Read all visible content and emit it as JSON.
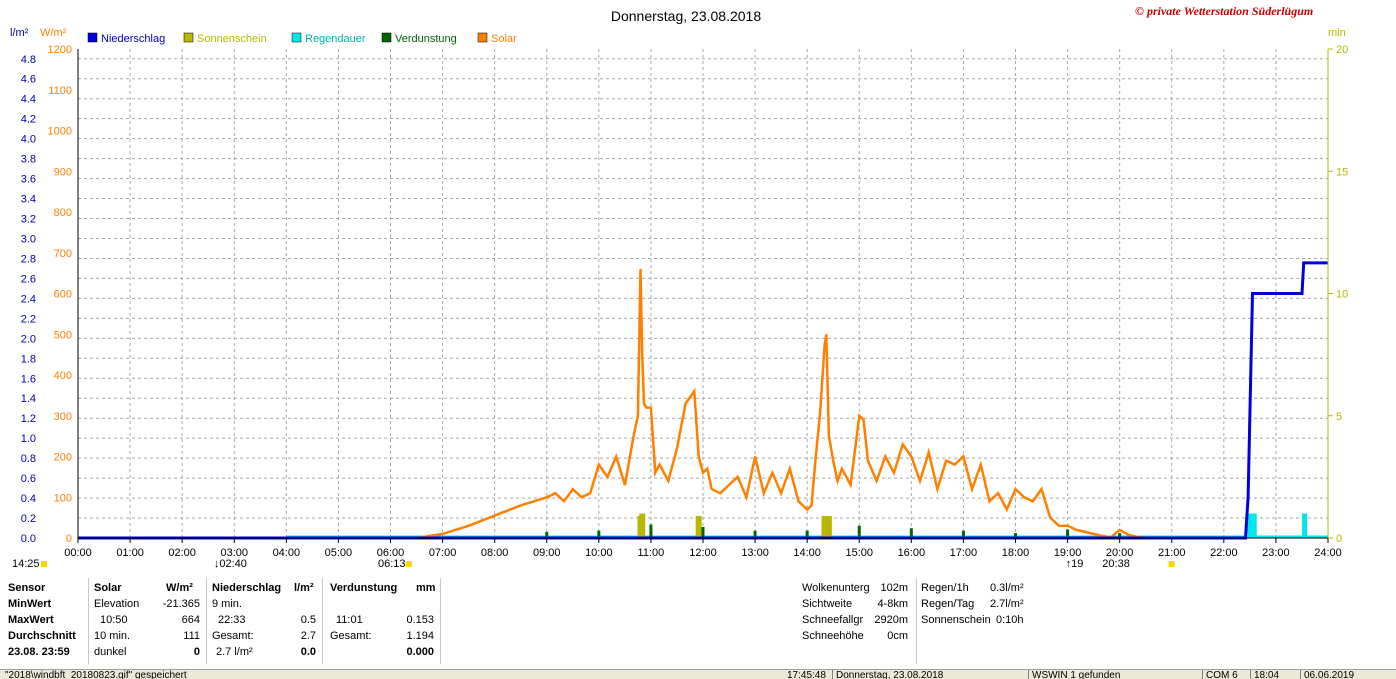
{
  "title": "Donnerstag, 23.08.2018",
  "copyright": "© private Wetterstation Süderlügum",
  "colors": {
    "niederschlag": "#0000dd",
    "sonnenschein": "#b8b800",
    "regendauer": "#00e8e8",
    "verdunstung": "#006600",
    "solar": "#ff8000",
    "grid": "#a8a8a8"
  },
  "legend": [
    {
      "label": "Niederschlag",
      "color": "#0000dd",
      "text_color": "#0000aa"
    },
    {
      "label": "Sonnenschein",
      "color": "#b8b800",
      "text_color": "#b8b800"
    },
    {
      "label": "Regendauer",
      "color": "#00e8e8",
      "text_color": "#00b0b0"
    },
    {
      "label": "Verdunstung",
      "color": "#006600",
      "text_color": "#006600"
    },
    {
      "label": "Solar",
      "color": "#ff8000",
      "text_color": "#ff8000"
    }
  ],
  "axes": {
    "left1_unit": "l/m²",
    "left2_unit": "W/m²",
    "right_unit": "min",
    "left1_ticks": [
      "4.8",
      "4.6",
      "4.4",
      "4.2",
      "4.0",
      "3.8",
      "3.6",
      "3.4",
      "3.2",
      "3.0",
      "2.8",
      "2.6",
      "2.4",
      "2.2",
      "2.0",
      "1.8",
      "1.6",
      "1.4",
      "1.2",
      "1.0",
      "0.8",
      "0.6",
      "0.4",
      "0.2",
      "0.0"
    ],
    "left2_ticks": [
      "1200",
      "1100",
      "1000",
      "900",
      "800",
      "700",
      "600",
      "500",
      "400",
      "300",
      "200",
      "100",
      "0"
    ],
    "right_ticks": [
      "20",
      "15",
      "10",
      "5",
      "0"
    ],
    "x_ticks": [
      "00:00",
      "01:00",
      "02:00",
      "03:00",
      "04:00",
      "05:00",
      "06:00",
      "07:00",
      "08:00",
      "09:00",
      "10:00",
      "11:00",
      "12:00",
      "13:00",
      "14:00",
      "15:00",
      "16:00",
      "17:00",
      "18:00",
      "19:00",
      "20:00",
      "21:00",
      "22:00",
      "23:00",
      "24:00"
    ],
    "markers": {
      "daylength": "14:25",
      "moonrise": "02:40",
      "sunrise": "06:13",
      "sunset_prefix": "19",
      "sunset": "20:38"
    }
  },
  "chart_data": {
    "type": "line",
    "x_range": [
      "00:00",
      "24:00"
    ],
    "ylim_precip": [
      0,
      4.8
    ],
    "ylim_solar": [
      0,
      1200
    ],
    "ylim_min": [
      0,
      20
    ],
    "grid": true,
    "series": [
      {
        "name": "Solar",
        "unit": "W/m²",
        "axis": "W/m²",
        "x": [
          "06:30",
          "07:00",
          "07:30",
          "08:00",
          "08:30",
          "09:00",
          "09:10",
          "09:20",
          "09:30",
          "09:40",
          "09:50",
          "10:00",
          "10:10",
          "10:20",
          "10:30",
          "10:40",
          "10:45",
          "10:48",
          "10:50",
          "10:52",
          "10:55",
          "11:00",
          "11:05",
          "11:10",
          "11:20",
          "11:30",
          "11:40",
          "11:50",
          "11:55",
          "12:00",
          "12:05",
          "12:10",
          "12:20",
          "12:30",
          "12:40",
          "12:50",
          "13:00",
          "13:10",
          "13:20",
          "13:30",
          "13:40",
          "13:50",
          "14:00",
          "14:05",
          "14:10",
          "14:15",
          "14:20",
          "14:22",
          "14:25",
          "14:30",
          "14:35",
          "14:40",
          "14:50",
          "15:00",
          "15:05",
          "15:10",
          "15:20",
          "15:30",
          "15:40",
          "15:50",
          "16:00",
          "16:10",
          "16:20",
          "16:30",
          "16:40",
          "16:50",
          "17:00",
          "17:10",
          "17:20",
          "17:30",
          "17:40",
          "17:50",
          "18:00",
          "18:10",
          "18:20",
          "18:30",
          "18:40",
          "18:50",
          "19:00",
          "19:10",
          "19:20",
          "19:30",
          "19:40",
          "19:50",
          "20:00",
          "20:10",
          "20:20",
          "20:30",
          "20:40"
        ],
        "values": [
          0,
          10,
          30,
          55,
          80,
          100,
          110,
          90,
          120,
          100,
          110,
          180,
          150,
          200,
          130,
          250,
          300,
          660,
          450,
          330,
          320,
          320,
          160,
          180,
          140,
          220,
          330,
          360,
          200,
          160,
          170,
          120,
          110,
          130,
          150,
          100,
          200,
          110,
          160,
          110,
          170,
          90,
          70,
          80,
          200,
          310,
          470,
          500,
          250,
          190,
          140,
          170,
          130,
          300,
          290,
          190,
          140,
          200,
          160,
          230,
          200,
          140,
          210,
          120,
          190,
          180,
          200,
          120,
          180,
          90,
          110,
          70,
          120,
          100,
          90,
          120,
          50,
          30,
          30,
          20,
          15,
          10,
          5,
          2,
          20,
          8,
          3,
          0,
          0
        ]
      },
      {
        "name": "Niederschlag",
        "unit": "l/m²",
        "axis": "l/m²",
        "x": [
          "00:00",
          "22:25",
          "22:28",
          "22:33",
          "23:00",
          "23:30",
          "23:32",
          "24:00"
        ],
        "values": [
          0,
          0,
          0.4,
          2.4,
          2.4,
          2.4,
          2.7,
          2.7
        ]
      },
      {
        "name": "Sonnenschein",
        "unit": "min",
        "axis": "min",
        "x": [
          "10:48",
          "10:50",
          "11:55",
          "14:20",
          "14:25"
        ],
        "values": [
          0.9,
          1.0,
          0.9,
          0.9,
          0.9
        ]
      },
      {
        "name": "Regendauer",
        "unit": "min",
        "axis": "min",
        "x": [
          "22:30",
          "22:35",
          "23:33"
        ],
        "values": [
          1.0,
          1.0,
          1.0
        ]
      },
      {
        "name": "Verdunstung",
        "unit": "min",
        "axis": "min",
        "x": [
          "09:00",
          "10:00",
          "11:00",
          "12:00",
          "13:00",
          "14:00",
          "15:00",
          "16:00",
          "17:00",
          "18:00",
          "19:00",
          "20:00"
        ],
        "values": [
          0.25,
          0.3,
          0.55,
          0.45,
          0.3,
          0.3,
          0.5,
          0.4,
          0.3,
          0.2,
          0.35,
          0.2
        ]
      }
    ]
  },
  "stats": {
    "sensor_col": {
      "header": "Sensor",
      "rows": [
        "MinWert",
        "MaxWert",
        "Durchschnitt",
        "23.08.  23:59"
      ]
    },
    "solar": {
      "header": "Solar",
      "unit": "W/m²",
      "min_label": "Elevation",
      "min_value": "-21.365",
      "max_time": "10:50",
      "max_value": "664",
      "avg_label": "10 min.",
      "avg_value": "111",
      "last_label": "dunkel",
      "last_value": "0"
    },
    "niederschlag": {
      "header": "Niederschlag",
      "unit": "l/m²",
      "min_label": "9 min.",
      "max_time": "22:33",
      "max_value": "0.5",
      "avg_label": "Gesamt:",
      "avg_value": "2.7",
      "last_label": "2.7 l/m²",
      "last_value": "0.0"
    },
    "verdunstung": {
      "header": "Verdunstung",
      "unit": "mm",
      "max_time": "11:01",
      "max_value": "0.153",
      "avg_label": "Gesamt:",
      "avg_value": "1.194",
      "last_value": "0.000"
    },
    "info_left": [
      {
        "label": "Wolkenunterg",
        "value": "102m"
      },
      {
        "label": "Sichtweite",
        "value": "4-8km"
      },
      {
        "label": "Schneefallgr",
        "value": "2920m"
      },
      {
        "label": "Schneehöhe",
        "value": "0cm"
      }
    ],
    "info_right": [
      {
        "label": "Regen/1h",
        "value": "0.3l/m²"
      },
      {
        "label": "Regen/Tag",
        "value": "2.7l/m²"
      },
      {
        "label": "Sonnenschein",
        "value": "0:10h"
      }
    ]
  },
  "statusbar": {
    "file": "\"2018\\windbft_20180823.gif\"  gespeichert",
    "time": "17:45:48",
    "date": "Donnerstag, 23.08.2018",
    "found": "WSWIN 1 gefunden",
    "com": "COM 6",
    "clock": "18:04",
    "today": "06.06.2019"
  }
}
